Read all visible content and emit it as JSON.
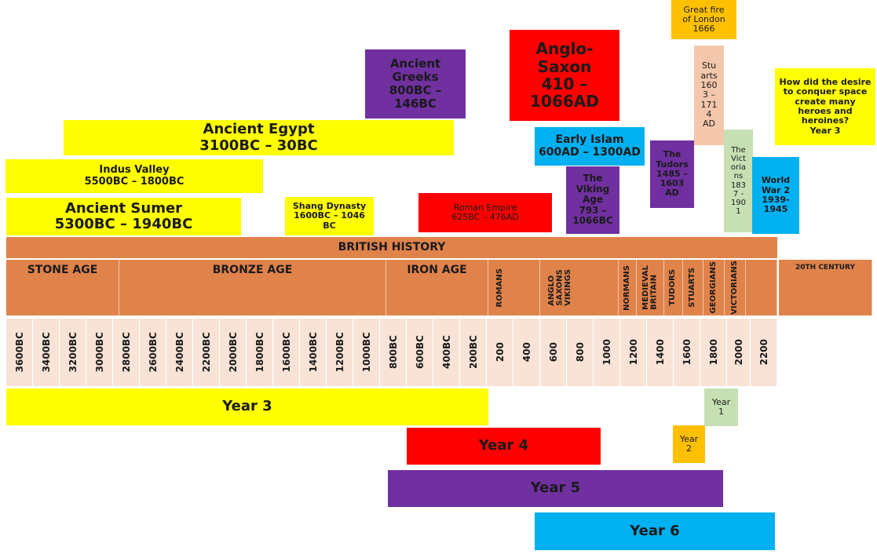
{
  "top_topics": {
    "great_fire": "Great fire\nof London\n1666",
    "anglo_saxon": "Anglo-\nSaxon\n410 –\n1066AD",
    "ancient_greeks": "Ancient\nGreeks\n800BC –\n146BC",
    "stuarts": "Stu\narts\n160\n3 –\n171\n4\nAD",
    "space_question": "How did the desire\nto conquer space\ncreate many\nheroes and\nheroines?\nYear 3",
    "ancient_egypt": "Ancient Egypt\n3100BC – 30BC",
    "early_islam": "Early Islam\n600AD – 1300AD",
    "tudors": "The\nTudors\n1485 –\n1603\nAD",
    "victorians": "The\nVict\noria\nns\n183\n7 -\n190\n1",
    "indus_valley": "Indus Valley\n5500BC – 1800BC",
    "viking_age": "The\nViking\nAge\n793 –\n1066BC",
    "world_war_2": "World\nWar 2\n1939-\n1945",
    "shang_dynasty": "Shang Dynasty\n1600BC – 1046\nBC",
    "roman_empire": "Roman Empire\n625BC – 476AD",
    "ancient_sumer": "Ancient Sumer\n5300BC – 1940BC"
  },
  "british_history_title": "BRITISH HISTORY",
  "eras": {
    "stone_age": "STONE AGE",
    "bronze_age": "BRONZE AGE",
    "iron_age": "IRON AGE",
    "romans": "ROMANS",
    "anglo_saxons_vikings": "ANGLO\nSAXONS\nVIKINGS",
    "normans": "NORMANS",
    "medieval_britain": "MEDIEVAL\nBRITAIN",
    "tudors": "TUDORS",
    "stuarts": "STUARTS",
    "georgians": "GEORGIANS",
    "victorians": "VICTORIANS",
    "twentieth_century": "20TH CENTURY"
  },
  "ticks": [
    "3600BC",
    "3400BC",
    "3200BC",
    "3000BC",
    "2800BC",
    "2600BC",
    "2400BC",
    "2200BC",
    "2000BC",
    "1800BC",
    "1600BC",
    "1400BC",
    "1200BC",
    "1000BC",
    "800BC",
    "600BC",
    "400BC",
    "200BC",
    "200",
    "400",
    "600",
    "800",
    "1000",
    "1200",
    "1400",
    "1600",
    "1800",
    "2000",
    "2200"
  ],
  "years": {
    "year1": "Year\n1",
    "year2": "Year\n2",
    "year3": "Year 3",
    "year4": "Year 4",
    "year5": "Year 5",
    "year6": "Year 6"
  },
  "colors": {
    "yellow": "#ffff00",
    "purple": "#7030a0",
    "red": "#ff0000",
    "blue": "#00b0f0",
    "orange": "#ffc000",
    "peach": "#f4c7ac",
    "green": "#c6e0b4",
    "band": "#e0834b",
    "tick": "#f8e3d6"
  }
}
